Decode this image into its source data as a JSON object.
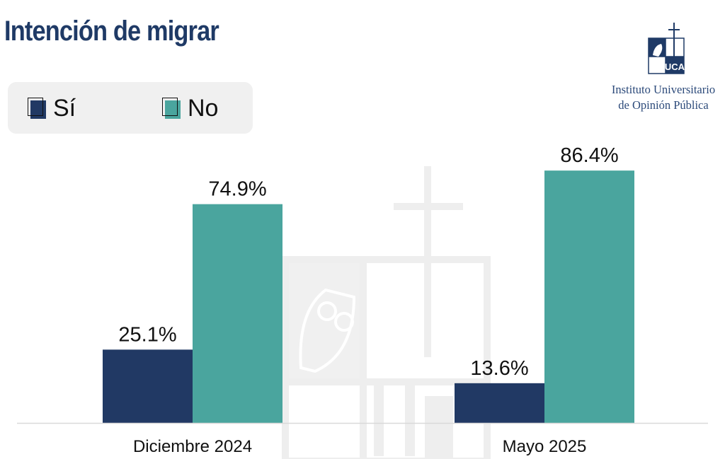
{
  "title": "Intención de migrar",
  "legend": [
    {
      "label": "Sí",
      "color": "#213964"
    },
    {
      "label": "No",
      "color": "#4aa59e"
    }
  ],
  "logo": {
    "line1": "Instituto Universitario",
    "line2": "de Opinión Pública",
    "monogram": "UCA"
  },
  "chart_data": {
    "type": "bar",
    "title": "Intención de migrar",
    "categories": [
      "Diciembre 2024",
      "Mayo 2025"
    ],
    "series": [
      {
        "name": "Sí",
        "color": "#213964",
        "values": [
          25.1,
          13.6
        ],
        "labels": [
          "25.1%",
          "13.6%"
        ]
      },
      {
        "name": "No",
        "color": "#4aa59e",
        "values": [
          74.9,
          86.4
        ],
        "labels": [
          "74.9%",
          "86.4%"
        ]
      }
    ],
    "xlabel": "",
    "ylabel": "",
    "ylim": [
      0,
      100
    ],
    "grid": false,
    "legend_position": "top-left",
    "value_suffix": "%"
  }
}
